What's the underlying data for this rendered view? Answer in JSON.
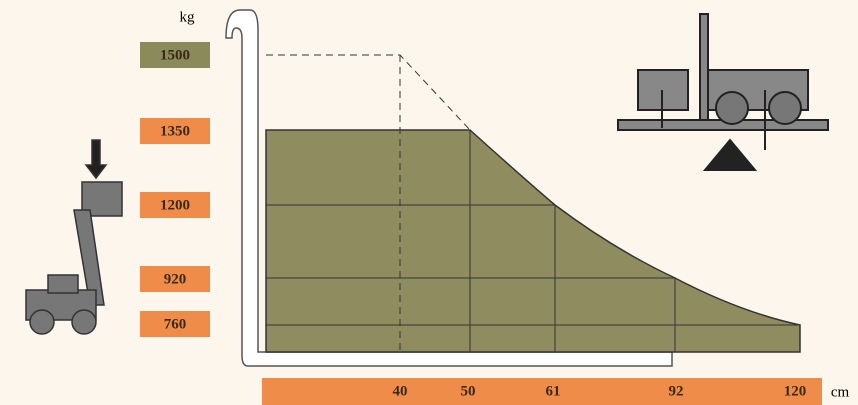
{
  "y_axis": {
    "unit": "kg",
    "labels": [
      "1500",
      "1350",
      "1200",
      "920",
      "760"
    ]
  },
  "x_axis": {
    "unit": "cm",
    "labels": [
      "40",
      "50",
      "61",
      "92",
      "120"
    ]
  }
}
